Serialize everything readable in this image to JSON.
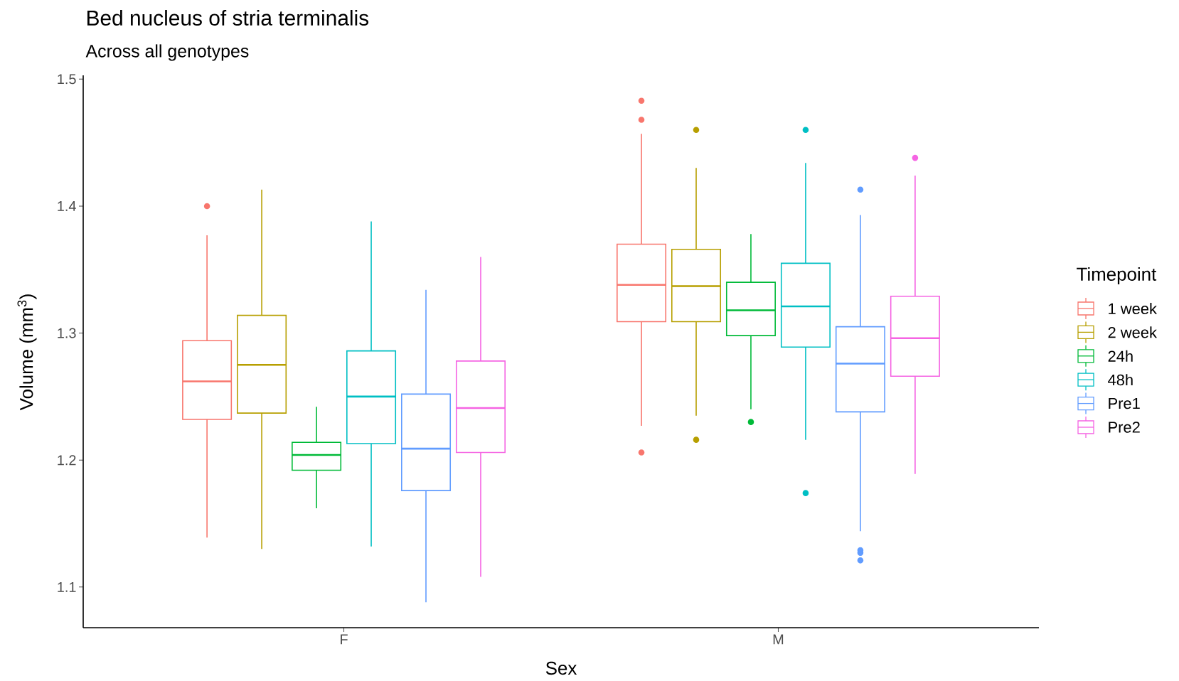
{
  "chart_data": {
    "type": "box",
    "title": "Bed nucleus of stria terminalis",
    "subtitle": "Across all genotypes",
    "xlabel": "Sex",
    "ylabel": "Volume (mm$^{3}$)",
    "legend_title": "Timepoint",
    "categories": [
      "F",
      "M"
    ],
    "ylim": [
      1.068,
      1.503
    ],
    "yticks": [
      1.1,
      1.2,
      1.3,
      1.4,
      1.5
    ],
    "legend": "right",
    "grid": false,
    "series": [
      {
        "name": "1 week",
        "color": "#F8766D",
        "boxes": [
          {
            "low": 1.139,
            "q1": 1.232,
            "median": 1.262,
            "q3": 1.294,
            "high": 1.377,
            "outliers": [
              1.4
            ]
          },
          {
            "low": 1.227,
            "q1": 1.309,
            "median": 1.338,
            "q3": 1.37,
            "high": 1.457,
            "outliers": [
              1.483,
              1.468,
              1.206
            ]
          }
        ]
      },
      {
        "name": "2 week",
        "color": "#B79F00",
        "boxes": [
          {
            "low": 1.13,
            "q1": 1.237,
            "median": 1.275,
            "q3": 1.314,
            "high": 1.413
          },
          {
            "low": 1.235,
            "q1": 1.309,
            "median": 1.337,
            "q3": 1.366,
            "high": 1.43,
            "outliers": [
              1.46,
              1.216
            ]
          }
        ]
      },
      {
        "name": "24h",
        "color": "#00BA38",
        "boxes": [
          {
            "low": 1.162,
            "q1": 1.192,
            "median": 1.204,
            "q3": 1.214,
            "high": 1.242
          },
          {
            "low": 1.24,
            "q1": 1.298,
            "median": 1.318,
            "q3": 1.34,
            "high": 1.378,
            "outliers": [
              1.23
            ]
          }
        ]
      },
      {
        "name": "48h",
        "color": "#00BFC4",
        "boxes": [
          {
            "low": 1.132,
            "q1": 1.213,
            "median": 1.25,
            "q3": 1.286,
            "high": 1.388
          },
          {
            "low": 1.216,
            "q1": 1.289,
            "median": 1.321,
            "q3": 1.355,
            "high": 1.434,
            "outliers": [
              1.46,
              1.174
            ]
          }
        ]
      },
      {
        "name": "Pre1",
        "color": "#619CFF",
        "boxes": [
          {
            "low": 1.088,
            "q1": 1.176,
            "median": 1.209,
            "q3": 1.252,
            "high": 1.334
          },
          {
            "low": 1.144,
            "q1": 1.238,
            "median": 1.276,
            "q3": 1.305,
            "high": 1.393,
            "outliers": [
              1.413,
              1.129,
              1.127,
              1.121
            ]
          }
        ]
      },
      {
        "name": "Pre2",
        "color": "#F564E3",
        "boxes": [
          {
            "low": 1.108,
            "q1": 1.206,
            "median": 1.241,
            "q3": 1.278,
            "high": 1.36
          },
          {
            "low": 1.189,
            "q1": 1.266,
            "median": 1.296,
            "q3": 1.329,
            "high": 1.424,
            "outliers": [
              1.438
            ]
          }
        ]
      }
    ]
  }
}
